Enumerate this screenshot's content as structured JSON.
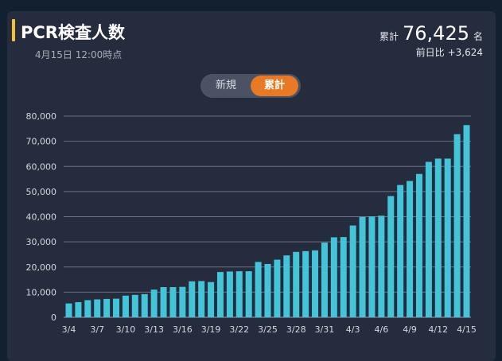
{
  "header": {
    "title": "PCR検査人数",
    "subtitle": "4月15日 12:00時点",
    "total_label": "累計",
    "total_value": "76,425",
    "total_unit": "名",
    "delta_label": "前日比",
    "delta_value": "+3,624"
  },
  "toggle": {
    "new_label": "新規",
    "cumulative_label": "累計",
    "selected": "累計"
  },
  "colors": {
    "bar": "#44c4d8",
    "accent": "#e87a26",
    "title_bar": "#f3c234",
    "background": "#252c3d"
  },
  "chart_data": {
    "type": "bar",
    "ylim": [
      0,
      80000
    ],
    "yticks": [
      0,
      10000,
      20000,
      30000,
      40000,
      50000,
      60000,
      70000,
      80000
    ],
    "ytick_labels": [
      "0",
      "10,000",
      "20,000",
      "30,000",
      "40,000",
      "50,000",
      "60,000",
      "70,000",
      "80,000"
    ],
    "grid": true,
    "categories": [
      "3/4",
      "3/5",
      "3/6",
      "3/7",
      "3/8",
      "3/9",
      "3/10",
      "3/11",
      "3/12",
      "3/13",
      "3/14",
      "3/15",
      "3/16",
      "3/17",
      "3/18",
      "3/19",
      "3/20",
      "3/21",
      "3/22",
      "3/23",
      "3/24",
      "3/25",
      "3/26",
      "3/27",
      "3/28",
      "3/29",
      "3/30",
      "3/31",
      "4/1",
      "4/2",
      "4/3",
      "4/4",
      "4/5",
      "4/6",
      "4/7",
      "4/8",
      "4/9",
      "4/10",
      "4/11",
      "4/12",
      "4/13",
      "4/14",
      "4/15"
    ],
    "xtick_labels": [
      "3/4",
      "3/7",
      "3/10",
      "3/13",
      "3/16",
      "3/19",
      "3/22",
      "3/25",
      "3/28",
      "3/31",
      "4/3",
      "4/6",
      "4/9",
      "4/12",
      "4/15"
    ],
    "values": [
      5500,
      6000,
      6800,
      7100,
      7300,
      7400,
      8600,
      8900,
      9200,
      11000,
      12000,
      12000,
      12100,
      14300,
      14400,
      14000,
      18000,
      18200,
      18300,
      18300,
      22000,
      21200,
      22900,
      24600,
      26000,
      26300,
      26600,
      29700,
      31800,
      31900,
      36500,
      39900,
      40100,
      40400,
      48200,
      52600,
      54200,
      57000,
      61800,
      63100,
      63100,
      72800,
      76425
    ]
  }
}
